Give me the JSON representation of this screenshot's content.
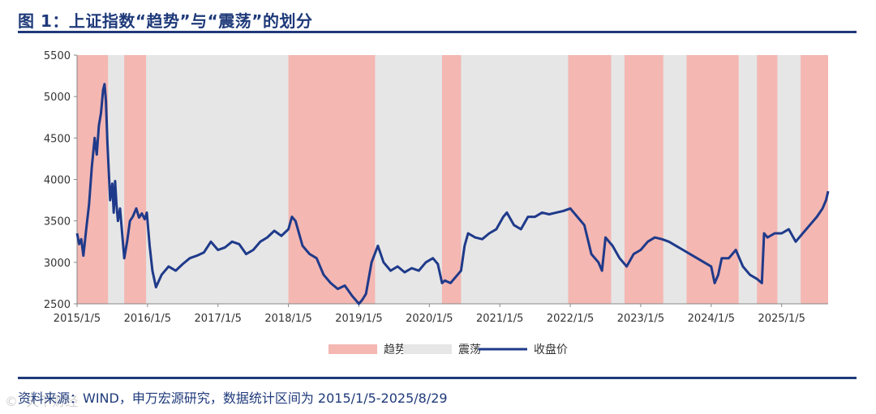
{
  "title": "图 1：上证指数“趋势”与“震荡”的划分",
  "source": "资料来源：WIND，申万宏源研究，数据统计区间为 2015/1/5-2025/8/29",
  "watermark": "©  天下财经",
  "colors": {
    "trend": "#f4b7b2",
    "range": "#e6e6e6",
    "line": "#1f3a8a",
    "axis": "#888888"
  },
  "chart_data": {
    "type": "line",
    "title": "",
    "xlabel": "",
    "ylabel": "",
    "ylim": [
      2500,
      5500
    ],
    "yticks": [
      2500,
      3000,
      3500,
      4000,
      4500,
      5000,
      5500
    ],
    "xlim": [
      2015.0,
      2025.66
    ],
    "xticks": [
      {
        "label": "2015/1/5",
        "value": 2015.0
      },
      {
        "label": "2016/1/5",
        "value": 2016.0
      },
      {
        "label": "2017/1/5",
        "value": 2017.0
      },
      {
        "label": "2018/1/5",
        "value": 2018.0
      },
      {
        "label": "2019/1/5",
        "value": 2019.0
      },
      {
        "label": "2020/1/5",
        "value": 2020.0
      },
      {
        "label": "2021/1/5",
        "value": 2021.0
      },
      {
        "label": "2022/1/5",
        "value": 2022.0
      },
      {
        "label": "2023/1/5",
        "value": 2023.0
      },
      {
        "label": "2024/1/5",
        "value": 2024.0
      },
      {
        "label": "2025/1/5",
        "value": 2025.0
      }
    ],
    "legend": [
      "趋势",
      "震荡",
      "收盘价"
    ],
    "legend_position": "bottom-center",
    "trend_periods": [
      [
        2015.0,
        2015.44
      ],
      [
        2015.67,
        2015.98
      ],
      [
        2018.0,
        2019.23
      ],
      [
        2020.18,
        2020.45
      ],
      [
        2021.97,
        2022.58
      ],
      [
        2022.77,
        2023.32
      ],
      [
        2023.65,
        2024.39
      ],
      [
        2024.65,
        2024.94
      ],
      [
        2025.27,
        2025.66
      ]
    ],
    "series": [
      {
        "name": "收盘价",
        "x": [
          2015.0,
          2015.03,
          2015.06,
          2015.09,
          2015.13,
          2015.17,
          2015.21,
          2015.25,
          2015.28,
          2015.31,
          2015.34,
          2015.37,
          2015.39,
          2015.41,
          2015.43,
          2015.45,
          2015.47,
          2015.5,
          2015.52,
          2015.54,
          2015.56,
          2015.58,
          2015.61,
          2015.64,
          2015.67,
          2015.71,
          2015.75,
          2015.79,
          2015.84,
          2015.88,
          2015.92,
          2015.96,
          2015.99,
          2016.03,
          2016.07,
          2016.12,
          2016.2,
          2016.3,
          2016.4,
          2016.5,
          2016.6,
          2016.7,
          2016.8,
          2016.9,
          2017.0,
          2017.1,
          2017.2,
          2017.3,
          2017.4,
          2017.5,
          2017.6,
          2017.7,
          2017.8,
          2017.9,
          2018.0,
          2018.05,
          2018.1,
          2018.2,
          2018.3,
          2018.4,
          2018.5,
          2018.6,
          2018.7,
          2018.8,
          2018.9,
          2019.0,
          2019.05,
          2019.1,
          2019.18,
          2019.27,
          2019.35,
          2019.45,
          2019.55,
          2019.65,
          2019.75,
          2019.85,
          2019.95,
          2020.05,
          2020.12,
          2020.18,
          2020.22,
          2020.3,
          2020.4,
          2020.45,
          2020.5,
          2020.55,
          2020.65,
          2020.75,
          2020.85,
          2020.95,
          2021.05,
          2021.1,
          2021.2,
          2021.3,
          2021.4,
          2021.5,
          2021.6,
          2021.7,
          2021.8,
          2021.9,
          2022.0,
          2022.1,
          2022.2,
          2022.3,
          2022.4,
          2022.45,
          2022.5,
          2022.6,
          2022.7,
          2022.8,
          2022.9,
          2023.0,
          2023.1,
          2023.2,
          2023.3,
          2023.4,
          2023.5,
          2023.6,
          2023.7,
          2023.8,
          2023.9,
          2024.0,
          2024.05,
          2024.1,
          2024.15,
          2024.25,
          2024.35,
          2024.45,
          2024.55,
          2024.65,
          2024.72,
          2024.75,
          2024.8,
          2024.9,
          2025.0,
          2025.1,
          2025.2,
          2025.3,
          2025.35,
          2025.4,
          2025.5,
          2025.58,
          2025.63,
          2025.66
        ],
        "values": [
          3350,
          3220,
          3280,
          3080,
          3400,
          3700,
          4150,
          4500,
          4300,
          4650,
          4800,
          5080,
          5150,
          4950,
          4450,
          4100,
          3750,
          3950,
          3600,
          3980,
          3700,
          3500,
          3650,
          3350,
          3050,
          3250,
          3500,
          3550,
          3650,
          3540,
          3590,
          3520,
          3600,
          3200,
          2900,
          2700,
          2850,
          2950,
          2900,
          2980,
          3050,
          3080,
          3120,
          3250,
          3150,
          3180,
          3250,
          3220,
          3100,
          3150,
          3250,
          3300,
          3380,
          3320,
          3400,
          3550,
          3500,
          3200,
          3100,
          3050,
          2850,
          2750,
          2680,
          2720,
          2600,
          2500,
          2550,
          2620,
          3000,
          3200,
          3000,
          2900,
          2950,
          2880,
          2930,
          2900,
          3000,
          3050,
          2980,
          2750,
          2780,
          2750,
          2850,
          2900,
          3200,
          3350,
          3300,
          3280,
          3350,
          3400,
          3550,
          3600,
          3450,
          3400,
          3550,
          3550,
          3600,
          3580,
          3600,
          3620,
          3650,
          3550,
          3450,
          3100,
          3000,
          2900,
          3300,
          3200,
          3050,
          2950,
          3100,
          3150,
          3250,
          3300,
          3280,
          3250,
          3200,
          3150,
          3100,
          3050,
          3000,
          2950,
          2750,
          2850,
          3050,
          3050,
          3150,
          2950,
          2850,
          2800,
          2750,
          3350,
          3300,
          3350,
          3350,
          3400,
          3250,
          3350,
          3400,
          3450,
          3550,
          3650,
          3750,
          3858
        ]
      }
    ]
  },
  "legend_labels": {
    "trend": "趋势",
    "range": "震荡",
    "close": "收盘价"
  }
}
